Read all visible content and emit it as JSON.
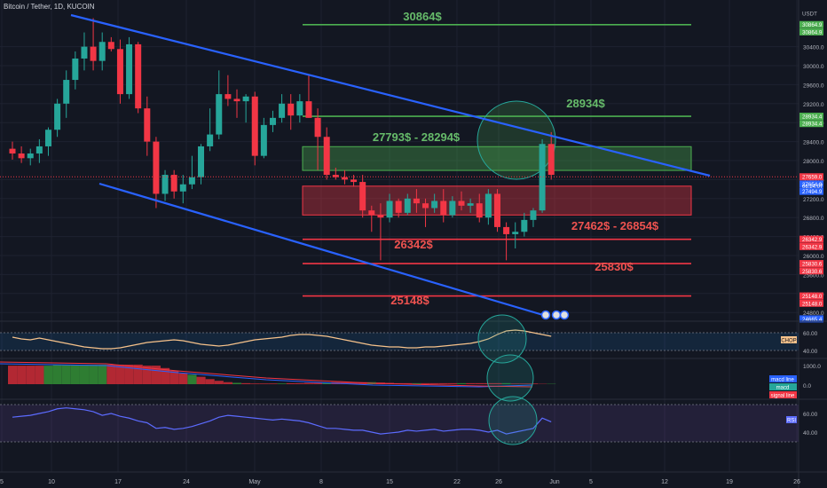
{
  "header": {
    "symbol": "Bitcoin / Tether, 1D, KUCOIN"
  },
  "colors": {
    "background": "#131722",
    "grid": "#1e2230",
    "up": "#26a69a",
    "down": "#f23645",
    "green_level": "#4caf50",
    "red_level": "#f23645",
    "trendline": "#2962ff",
    "text_green": "#66bb6a",
    "text_red": "#ef5350"
  },
  "chart_data": {
    "type": "candlestick",
    "y_axis": {
      "unit": "USDT",
      "ticks": [
        24800,
        25200,
        25600,
        26000,
        26400,
        26800,
        27200,
        27600,
        28000,
        28400,
        28800,
        29200,
        29600,
        30000,
        30400
      ],
      "range": [
        24500,
        31400
      ]
    },
    "x_axis": {
      "ticks": [
        "5",
        "10",
        "17",
        "24",
        "May",
        "8",
        "15",
        "22",
        "26",
        "Jun",
        "5",
        "12",
        "19",
        "26"
      ]
    },
    "candles": [
      [
        28250,
        28400,
        28020,
        28150
      ],
      [
        28150,
        28300,
        27950,
        28050
      ],
      [
        28050,
        28250,
        27900,
        28150
      ],
      [
        28150,
        28450,
        27950,
        28300
      ],
      [
        28300,
        28700,
        28100,
        28650
      ],
      [
        28650,
        29300,
        28500,
        29200
      ],
      [
        29200,
        29900,
        28900,
        29700
      ],
      [
        29700,
        30300,
        29500,
        30150
      ],
      [
        30150,
        30700,
        29900,
        30400
      ],
      [
        30400,
        31000,
        29900,
        30100
      ],
      [
        30100,
        30700,
        29900,
        30500
      ],
      [
        30500,
        30600,
        30300,
        30350
      ],
      [
        30350,
        30550,
        29200,
        29400
      ],
      [
        29400,
        30600,
        29300,
        30450
      ],
      [
        30450,
        30500,
        29000,
        29100
      ],
      [
        29100,
        29350,
        28100,
        28400
      ],
      [
        28400,
        28500,
        27000,
        27300
      ],
      [
        27300,
        27800,
        27150,
        27700
      ],
      [
        27700,
        27800,
        27200,
        27350
      ],
      [
        27350,
        27700,
        27100,
        27500
      ],
      [
        27500,
        28100,
        27400,
        27650
      ],
      [
        27650,
        28350,
        27500,
        28300
      ],
      [
        28300,
        29100,
        28200,
        28550
      ],
      [
        28550,
        29900,
        28450,
        29400
      ],
      [
        29400,
        29800,
        29150,
        29300
      ],
      [
        29300,
        29500,
        28900,
        29250
      ],
      [
        29250,
        29400,
        28800,
        29350
      ],
      [
        29350,
        29450,
        27900,
        28100
      ],
      [
        28100,
        28900,
        28050,
        28750
      ],
      [
        28750,
        29050,
        28600,
        28900
      ],
      [
        28900,
        29400,
        28800,
        29200
      ],
      [
        29200,
        29400,
        28650,
        28950
      ],
      [
        28950,
        29400,
        28800,
        29250
      ],
      [
        29250,
        29800,
        28900,
        28900
      ],
      [
        28900,
        29100,
        27800,
        28500
      ],
      [
        28500,
        28700,
        27600,
        27700
      ],
      [
        27700,
        27850,
        27600,
        27650
      ],
      [
        27650,
        27800,
        27500,
        27600
      ],
      [
        27600,
        27700,
        27450,
        27550
      ],
      [
        27550,
        27700,
        26800,
        26950
      ],
      [
        26950,
        27050,
        26500,
        26850
      ],
      [
        26850,
        27100,
        25900,
        26800
      ],
      [
        26800,
        27300,
        26700,
        27150
      ],
      [
        27150,
        27200,
        26800,
        26900
      ],
      [
        26900,
        27300,
        26850,
        27200
      ],
      [
        27200,
        27400,
        26900,
        27100
      ],
      [
        27100,
        27200,
        26600,
        27000
      ],
      [
        27000,
        27300,
        26900,
        27150
      ],
      [
        27150,
        27400,
        26700,
        26850
      ],
      [
        26850,
        27250,
        26800,
        27150
      ],
      [
        27150,
        27350,
        26950,
        27050
      ],
      [
        27050,
        27200,
        26900,
        27100
      ],
      [
        27100,
        27300,
        26700,
        26800
      ],
      [
        26800,
        27400,
        26650,
        27300
      ],
      [
        27300,
        27400,
        26500,
        26600
      ],
      [
        26600,
        26700,
        25900,
        26450
      ],
      [
        26450,
        26700,
        26150,
        26500
      ],
      [
        26500,
        26900,
        26400,
        26750
      ],
      [
        26750,
        27000,
        26600,
        26950
      ],
      [
        26950,
        28450,
        26900,
        28350
      ],
      [
        28350,
        28600,
        27600,
        27700
      ]
    ],
    "current_price": 27659.0,
    "levels": [
      {
        "price": 30864,
        "label": "30864$",
        "color": "green"
      },
      {
        "price": 28934,
        "label": "28934$",
        "color": "green"
      },
      {
        "price": 26342,
        "label": "26342$",
        "color": "red"
      },
      {
        "price": 25830,
        "label": "25830$",
        "color": "red"
      },
      {
        "price": 25148,
        "label": "25148$",
        "color": "red"
      }
    ],
    "zones": [
      {
        "top": 28294,
        "bottom": 27793,
        "label": "27793$ - 28294$",
        "color": "green"
      },
      {
        "top": 27462,
        "bottom": 26854,
        "label": "27462$ - 26854$",
        "color": "red"
      }
    ],
    "price_labels": [
      {
        "price": 31100,
        "text": "USDT",
        "bg": "none"
      },
      {
        "price": 30864.9,
        "text": "30864.9",
        "bg": "green"
      },
      {
        "price": 30864.9,
        "text": "30864.9",
        "bg": "green"
      },
      {
        "price": 28934.4,
        "text": "28934.4",
        "bg": "green"
      },
      {
        "price": 28934.4,
        "text": "28934.4",
        "bg": "green"
      },
      {
        "price": 27659.0,
        "text": "27659.0",
        "bg": "red"
      },
      {
        "price": 27654.9,
        "text": "27654.9",
        "bg": "blue"
      },
      {
        "price": 27494.9,
        "text": "27494.9",
        "bg": "blue"
      },
      {
        "price": 26342.9,
        "text": "26342.9",
        "bg": "red"
      },
      {
        "price": 26342.9,
        "text": "26342.9",
        "bg": "red"
      },
      {
        "price": 25830.6,
        "text": "25830.6",
        "bg": "red"
      },
      {
        "price": 25830.6,
        "text": "25830.6",
        "bg": "red"
      },
      {
        "price": 25148.0,
        "text": "25148.0",
        "bg": "red"
      },
      {
        "price": 25148.0,
        "text": "25148.0",
        "bg": "red"
      },
      {
        "price": 24665.4,
        "text": "24665.4",
        "bg": "blue"
      }
    ],
    "countdown": "06:24:07",
    "indicators": {
      "chop": {
        "label": "CHOP",
        "ticks": [
          60,
          40
        ],
        "values": [
          55,
          53,
          52,
          54,
          52,
          50,
          48,
          46,
          44,
          43,
          42,
          42,
          43,
          45,
          47,
          49,
          50,
          51,
          52,
          51,
          49,
          47,
          46,
          45,
          46,
          48,
          50,
          52,
          53,
          54,
          55,
          57,
          58,
          58,
          57,
          56,
          54,
          52,
          50,
          48,
          46,
          45,
          44,
          44,
          43,
          43,
          44,
          44,
          45,
          46,
          47,
          48,
          50,
          53,
          58,
          62,
          63,
          62,
          60,
          58,
          56
        ]
      },
      "macd": {
        "labels": [
          "macd line",
          "macd",
          "signal line"
        ],
        "ticks": [
          "1000.0",
          "0.0"
        ]
      },
      "rsi": {
        "label": "RSI",
        "ticks": [
          60,
          40
        ],
        "values": [
          56,
          57,
          58,
          60,
          62,
          65,
          66,
          65,
          64,
          62,
          58,
          60,
          57,
          55,
          52,
          50,
          44,
          45,
          43,
          44,
          46,
          49,
          52,
          56,
          58,
          57,
          56,
          55,
          54,
          53,
          54,
          53,
          52,
          50,
          47,
          44,
          44,
          43,
          42,
          42,
          40,
          38,
          39,
          40,
          42,
          41,
          42,
          43,
          41,
          42,
          43,
          43,
          42,
          40,
          42,
          38,
          40,
          42,
          44,
          55,
          51
        ]
      }
    }
  }
}
